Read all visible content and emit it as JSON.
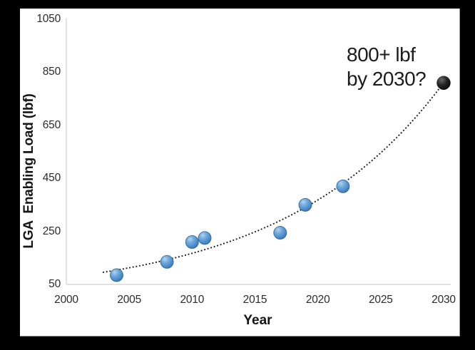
{
  "chart_data": {
    "type": "scatter",
    "xlabel": "Year",
    "ylabel": "LGA  Enabling Load (lbf)",
    "xlim": [
      2000,
      2030
    ],
    "ylim": [
      50,
      1050
    ],
    "x_ticks": [
      2000,
      2005,
      2010,
      2015,
      2020,
      2025,
      2030
    ],
    "y_ticks": [
      50,
      250,
      450,
      650,
      850,
      1050
    ],
    "grid": false,
    "legend": false,
    "series": [
      {
        "name": "historical-lga-enabling-load",
        "marker": "circle-glossy",
        "points": [
          [
            2004,
            85
          ],
          [
            2008,
            135
          ],
          [
            2010,
            210
          ],
          [
            2011,
            225
          ],
          [
            2017,
            245
          ],
          [
            2019,
            350
          ],
          [
            2022,
            420
          ]
        ]
      },
      {
        "name": "projected-2030-point",
        "marker": "circle-black",
        "points": [
          [
            2030,
            810
          ]
        ]
      }
    ],
    "trendline": {
      "type": "exponential",
      "style": "dotted",
      "a": 76,
      "b": 0.0789,
      "year_start": 2002.9,
      "year_end": 2030,
      "formula": "load = 76 * exp(0.0789 * (year - 2000))"
    },
    "annotation": {
      "line1": "800+ lbf",
      "line2": "by 2030?"
    },
    "colors": {
      "point_fill": "#5b9bd5",
      "point_edge": "#2c5d8f",
      "projection_fill": "#111111",
      "trendline": "#1a1a1a",
      "axis_line": "#d9d9d9",
      "tick_text": "#2b2b2b",
      "title_text": "#151515",
      "background": "#ffffff",
      "frame": "#000000"
    }
  }
}
